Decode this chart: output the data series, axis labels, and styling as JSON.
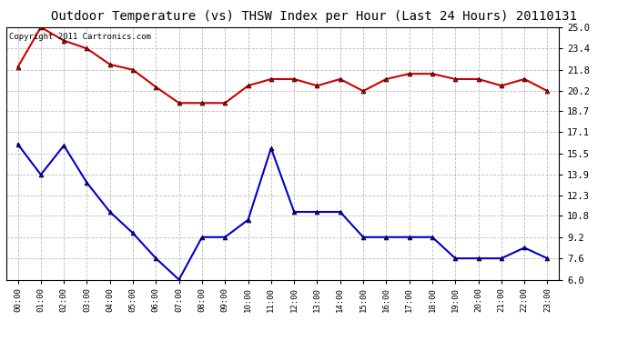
{
  "title": "Outdoor Temperature (vs) THSW Index per Hour (Last 24 Hours) 20110131",
  "copyright": "Copyright 2011 Cartronics.com",
  "x_labels": [
    "00:00",
    "01:00",
    "02:00",
    "03:00",
    "04:00",
    "05:00",
    "06:00",
    "07:00",
    "08:00",
    "09:00",
    "10:00",
    "11:00",
    "12:00",
    "13:00",
    "14:00",
    "15:00",
    "16:00",
    "17:00",
    "18:00",
    "19:00",
    "20:00",
    "21:00",
    "22:00",
    "23:00"
  ],
  "red_data": [
    22.0,
    25.0,
    24.0,
    23.4,
    22.2,
    21.8,
    20.5,
    19.3,
    19.3,
    19.3,
    20.6,
    21.1,
    21.1,
    20.6,
    21.1,
    20.2,
    21.1,
    21.5,
    21.5,
    21.1,
    21.1,
    20.6,
    21.1,
    20.2
  ],
  "blue_data": [
    16.2,
    13.9,
    16.1,
    13.3,
    11.1,
    9.5,
    7.6,
    6.0,
    9.2,
    9.2,
    10.5,
    15.9,
    11.1,
    11.1,
    11.1,
    9.2,
    9.2,
    9.2,
    9.2,
    7.6,
    7.6,
    7.6,
    8.4,
    7.6
  ],
  "red_color": "#cc0000",
  "blue_color": "#0000cc",
  "marker_color": "#000000",
  "bg_color": "#ffffff",
  "grid_color": "#bbbbbb",
  "yticks": [
    6.0,
    7.6,
    9.2,
    10.8,
    12.3,
    13.9,
    15.5,
    17.1,
    18.7,
    20.2,
    21.8,
    23.4,
    25.0
  ],
  "ymin": 6.0,
  "ymax": 25.0,
  "title_fontsize": 10,
  "copyright_fontsize": 6.5,
  "tick_fontsize": 7.5,
  "x_tick_fontsize": 6.5
}
